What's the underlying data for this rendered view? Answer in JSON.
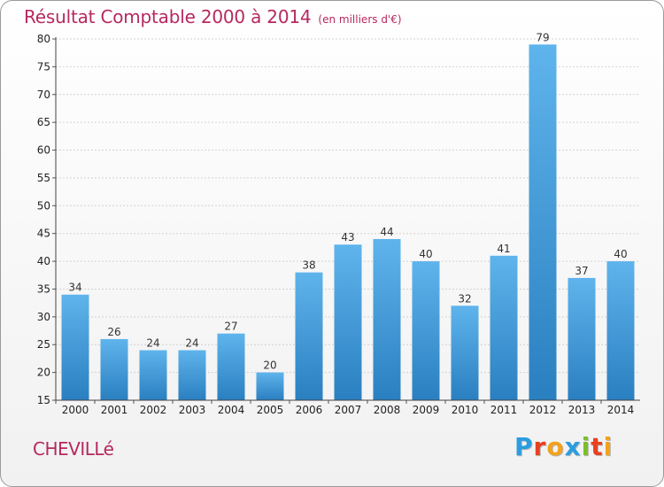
{
  "chart_data": {
    "type": "bar",
    "title": "Résultat Comptable 2000 à 2014",
    "subtitle": "(en milliers d'€)",
    "categories": [
      "2000",
      "2001",
      "2002",
      "2003",
      "2004",
      "2005",
      "2006",
      "2007",
      "2008",
      "2009",
      "2010",
      "2011",
      "2012",
      "2013",
      "2014"
    ],
    "values": [
      34,
      26,
      24,
      24,
      27,
      20,
      38,
      43,
      44,
      40,
      32,
      41,
      79,
      37,
      40
    ],
    "ylim": [
      15,
      80
    ],
    "yticks": [
      15,
      20,
      25,
      30,
      35,
      40,
      45,
      50,
      55,
      60,
      65,
      70,
      75,
      80
    ],
    "grid": true,
    "xlabel": "",
    "ylabel": ""
  },
  "commune": "CHEVILLé",
  "logo": {
    "text": "Proxiti",
    "letters": [
      {
        "ch": "P",
        "color": "#2a9de0"
      },
      {
        "ch": "r",
        "color": "#e8411f"
      },
      {
        "ch": "o",
        "color": "#f2a21b"
      },
      {
        "ch": "x",
        "color": "#2a9de0"
      },
      {
        "ch": "i",
        "color": "#7bbf2a"
      },
      {
        "ch": "t",
        "color": "#e8411f"
      },
      {
        "ch": "i",
        "color": "#f2a21b"
      }
    ]
  },
  "colors": {
    "title": "#b5295f",
    "bar_light": "#5fb4ec",
    "bar_dark": "#2a7fc0"
  }
}
